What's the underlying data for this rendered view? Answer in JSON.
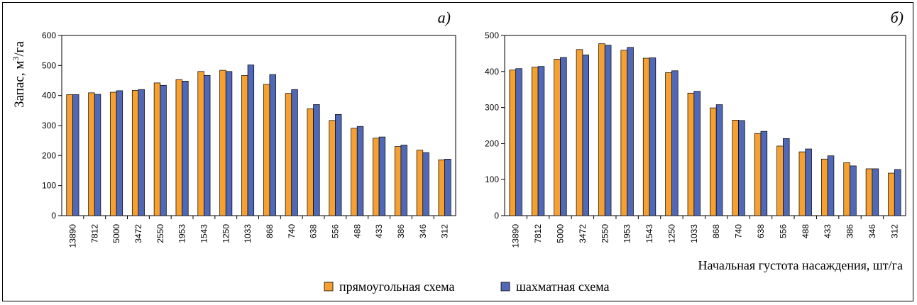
{
  "chart_data": [
    {
      "type": "bar",
      "panel_label": "а)",
      "ylabel_base": "Запас, м",
      "ylabel_sup": "3",
      "ylabel_tail": "/га",
      "ylim": [
        0,
        600
      ],
      "yticks": [
        0,
        100,
        200,
        300,
        400,
        500,
        600
      ],
      "categories": [
        "13890",
        "7812",
        "5000",
        "3472",
        "2550",
        "1953",
        "1543",
        "1250",
        "1033",
        "868",
        "740",
        "638",
        "556",
        "488",
        "433",
        "386",
        "346",
        "312"
      ],
      "series": [
        {
          "name": "прямоугольная схема",
          "values": [
            403,
            409,
            411,
            417,
            442,
            453,
            480,
            484,
            467,
            437,
            407,
            356,
            317,
            291,
            258,
            230,
            218,
            186
          ]
        },
        {
          "name": "шахматная схема",
          "values": [
            403,
            404,
            416,
            420,
            434,
            448,
            467,
            480,
            502,
            470,
            420,
            370,
            337,
            297,
            262,
            235,
            210,
            188
          ]
        }
      ]
    },
    {
      "type": "bar",
      "panel_label": "б)",
      "xlabel": "Начальная густота насаждения, шт/га",
      "ylim": [
        0,
        500
      ],
      "yticks": [
        0,
        100,
        200,
        300,
        400,
        500
      ],
      "categories": [
        "13890",
        "7812",
        "5000",
        "3472",
        "2550",
        "1953",
        "1543",
        "1250",
        "1033",
        "868",
        "740",
        "638",
        "556",
        "488",
        "433",
        "386",
        "346",
        "312"
      ],
      "series": [
        {
          "name": "прямоугольная схема",
          "values": [
            404,
            412,
            434,
            461,
            477,
            459,
            437,
            397,
            340,
            299,
            265,
            228,
            193,
            177,
            157,
            147,
            130,
            118
          ]
        },
        {
          "name": "шахматная схема",
          "values": [
            408,
            414,
            439,
            446,
            473,
            467,
            438,
            402,
            345,
            308,
            264,
            234,
            214,
            185,
            166,
            138,
            130,
            128
          ]
        }
      ]
    }
  ],
  "legend": [
    {
      "label": "прямоугольная схема",
      "color": "#F5A030"
    },
    {
      "label": "шахматная схема",
      "color": "#5068B8"
    }
  ],
  "colors": {
    "series1": "#F5A030",
    "series2": "#5068B8"
  }
}
